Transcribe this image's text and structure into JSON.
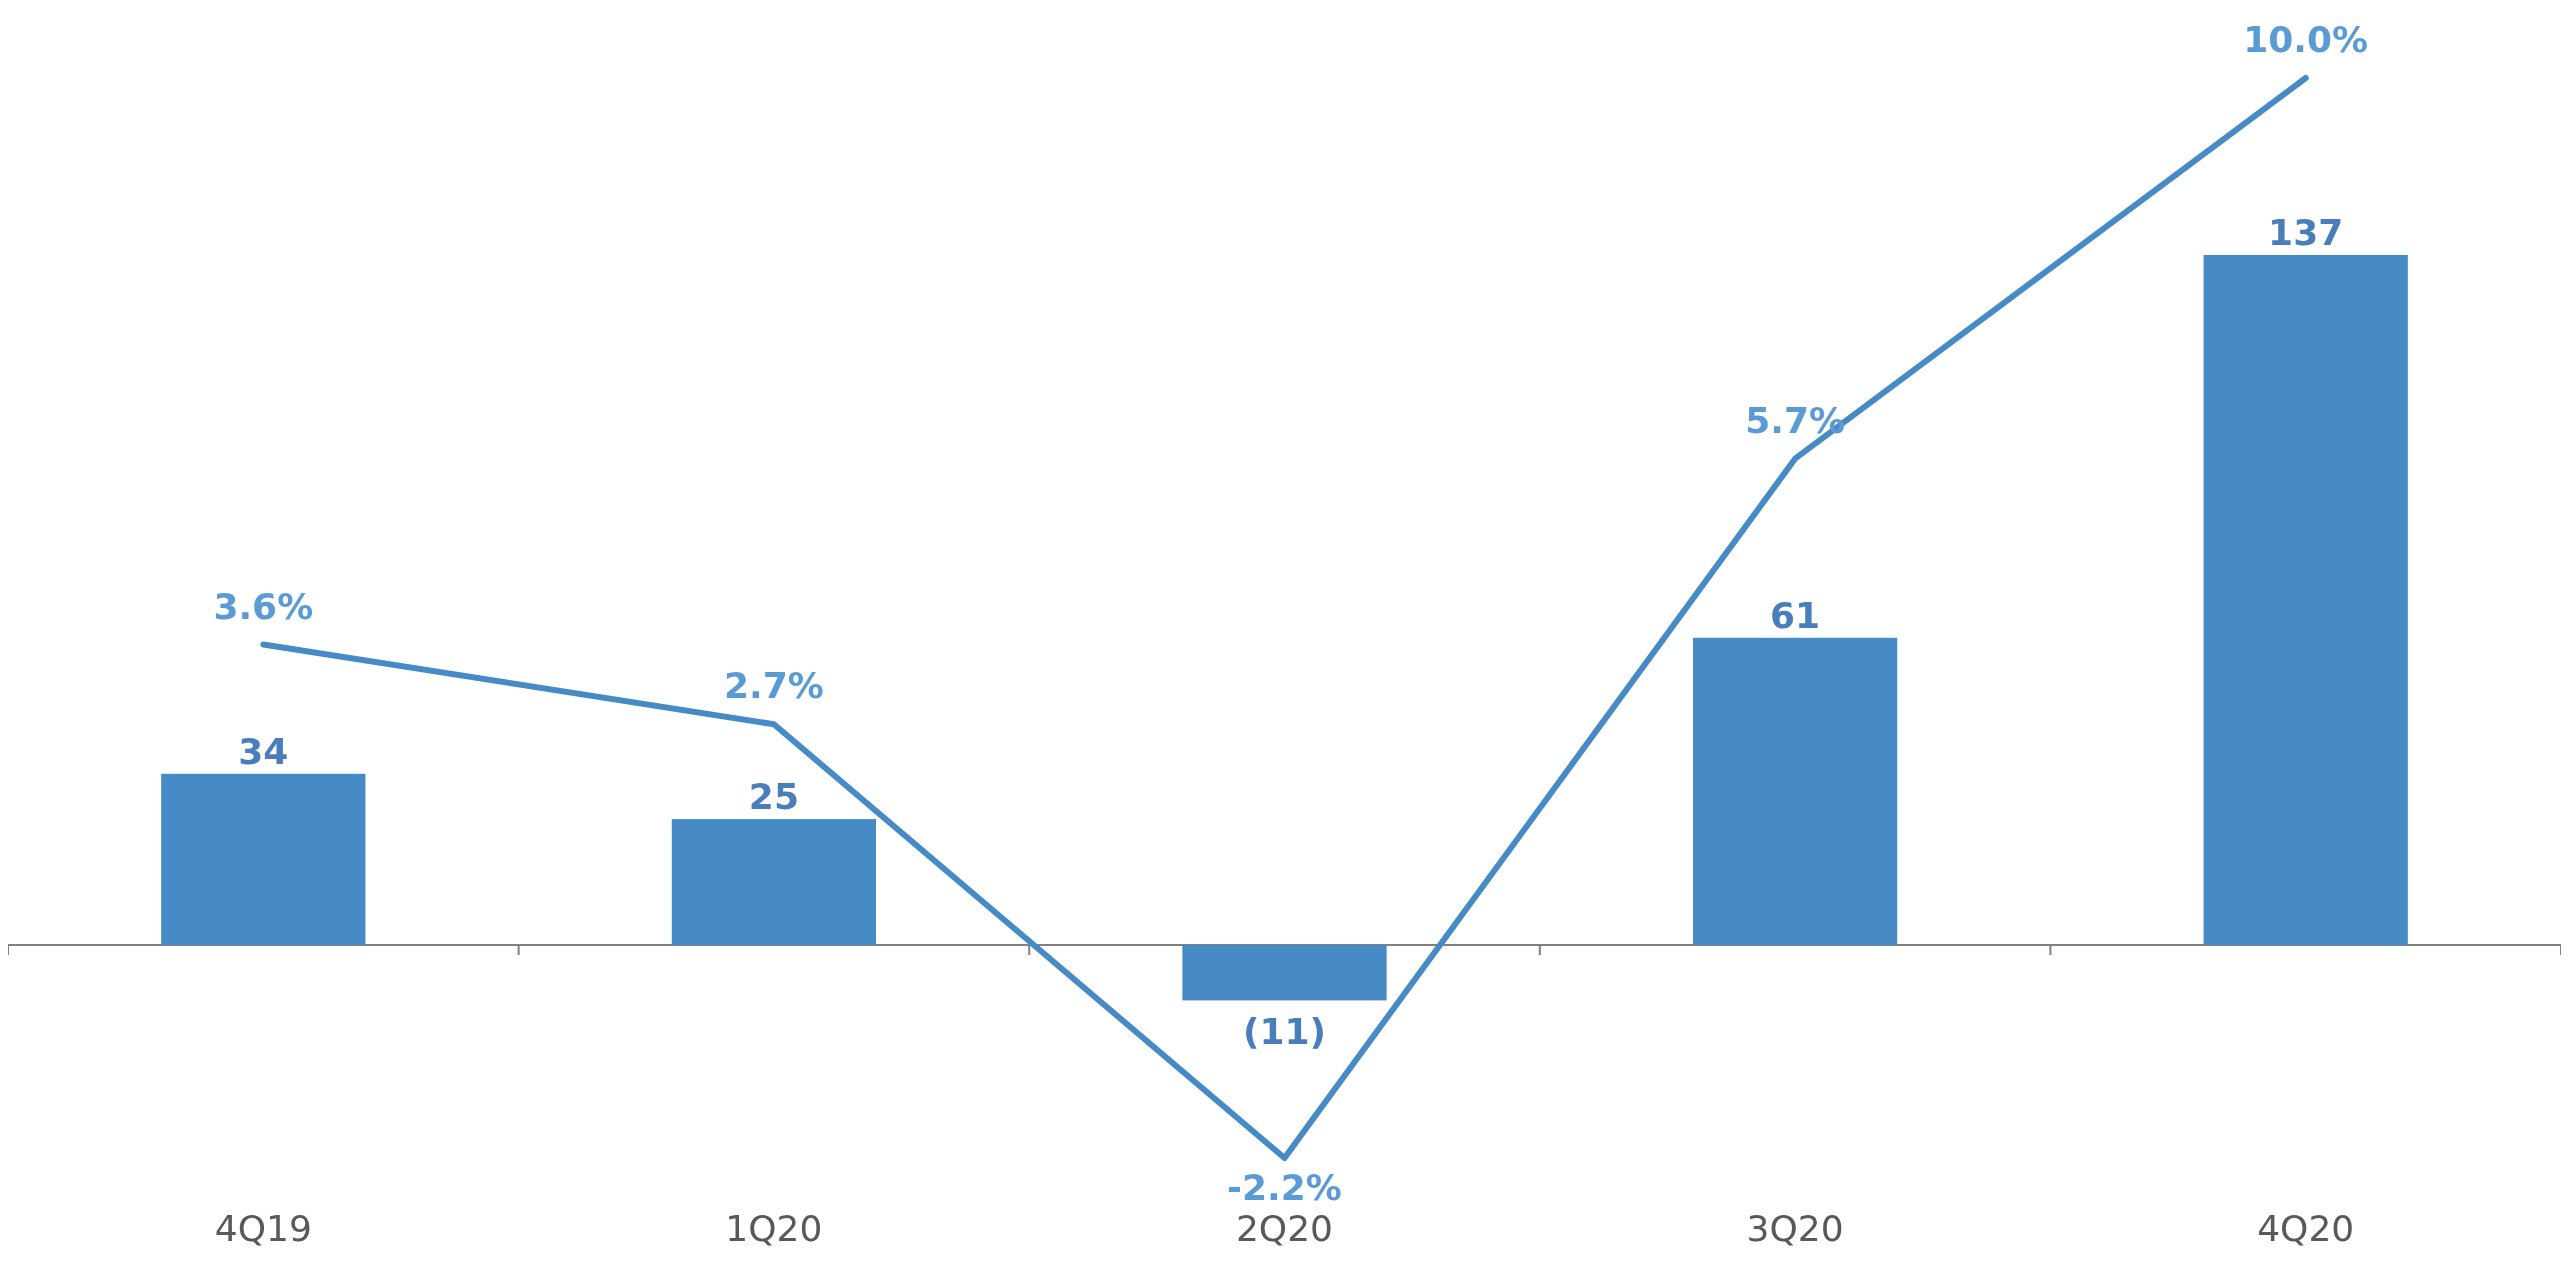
{
  "chart_data": {
    "type": "bar",
    "categories": [
      "4Q19",
      "1Q20",
      "2Q20",
      "3Q20",
      "4Q20"
    ],
    "series": [
      {
        "color": "#468bc6",
        "values": [
          34,
          25,
          -11,
          61,
          137
        ],
        "value_labels": [
          "34",
          "25",
          "(11)",
          "61",
          "137"
        ]
      },
      {
        "type": "line",
        "axis": "y2",
        "color": "#468bc6",
        "values": [
          3.6,
          2.7,
          -2.2,
          5.7,
          10.0
        ],
        "value_labels": [
          "3.6%",
          "2.7%",
          "-2.2%",
          "5.7%",
          "10.0%"
        ]
      }
    ],
    "tick_labels": "x",
    "marker": "none",
    "line_style": "solid"
  }
}
